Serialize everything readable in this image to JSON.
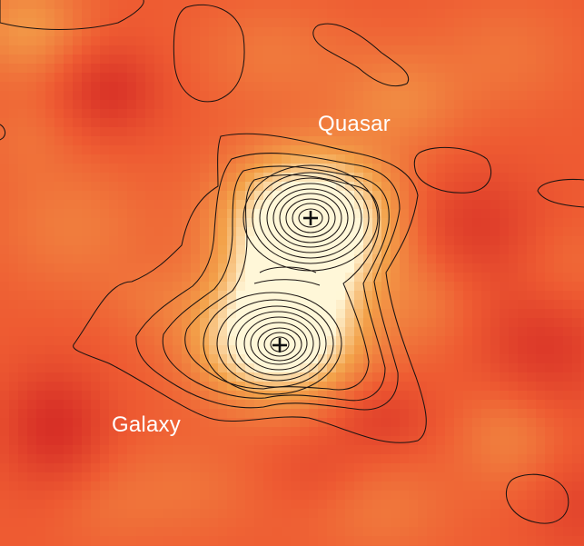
{
  "labels": {
    "quasar": "Quasar",
    "galaxy": "Galaxy"
  },
  "colormap": {
    "low": "#c9141f",
    "mid": "#ee5b32",
    "high": "#f3a24a",
    "peak": "#fff7d8"
  },
  "sources": [
    {
      "name": "quasar",
      "marker": "plus"
    },
    {
      "name": "galaxy",
      "marker": "plus"
    }
  ]
}
